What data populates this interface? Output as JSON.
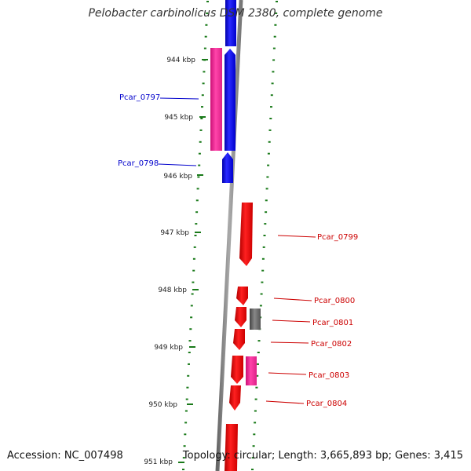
{
  "title": "Pelobacter carbinolicus DSM 2380, complete genome",
  "accession": "Accession: NC_007498",
  "topology": "Topology: circular; Length: 3,665,893 bp; Genes: 3,415",
  "colors": {
    "forward_strand": "#ff0000",
    "reverse_strand": "#0000ff",
    "pink_gene": "#ff3399",
    "gray_gene": "#666666",
    "backbone": "#888888",
    "ticks": "#1a7a1a",
    "left_label": "#0000cc",
    "right_label": "#cc0000"
  },
  "kbp_labels": [
    "944 kbp",
    "945 kbp",
    "946 kbp",
    "947 kbp",
    "948 kbp",
    "949 kbp",
    "950 kbp",
    "951 kbp"
  ],
  "gene_labels_left": [
    "Pcar_0797",
    "Pcar_0798"
  ],
  "gene_labels_right": [
    "Pcar_0799",
    "Pcar_0800",
    "Pcar_0801",
    "Pcar_0802",
    "Pcar_0803",
    "Pcar_0804"
  ]
}
